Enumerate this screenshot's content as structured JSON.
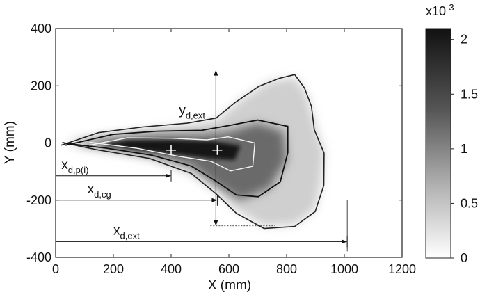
{
  "chart_data": {
    "type": "heatmap",
    "title": "",
    "xlabel": "X (mm)",
    "ylabel": "Y (mm)",
    "xlim": [
      0,
      1200
    ],
    "ylim": [
      -400,
      400
    ],
    "x_ticks": [
      "0",
      "200",
      "400",
      "600",
      "800",
      "1000",
      "1200"
    ],
    "y_ticks": [
      "400",
      "200",
      "0",
      "-200",
      "-400"
    ],
    "x_tick_values": [
      0,
      200,
      400,
      600,
      800,
      1000,
      1200
    ],
    "y_tick_values": [
      400,
      200,
      0,
      -200,
      -400
    ],
    "colorbar": {
      "exponent_label": "x10",
      "exponent": "-3",
      "range": [
        0,
        2.1
      ],
      "ticks": [
        "2",
        "1.5",
        "1",
        "0.5",
        "0"
      ],
      "tick_values": [
        2,
        1.5,
        1,
        0.5,
        0
      ],
      "colormap": "gray-reversed"
    },
    "annotations": {
      "y_ext": {
        "base": "y",
        "sub": "d,ext",
        "x": 555,
        "y_from": 255,
        "y_to": -290
      },
      "x_pi": {
        "base": "x",
        "sub": "d,p(i)",
        "x_from": 0,
        "x_to": 400,
        "y": -115
      },
      "x_cg": {
        "base": "x",
        "sub": "d,cg",
        "x_from": 0,
        "x_to": 560,
        "y": -200
      },
      "x_ext": {
        "base": "x",
        "sub": "d,ext",
        "x_from": 0,
        "x_to": 1010,
        "y": -345
      }
    },
    "markers": [
      {
        "x": 400,
        "y": -25
      },
      {
        "x": 560,
        "y": -25
      }
    ],
    "contour_levels": [
      "outer",
      "mid",
      "inner"
    ]
  }
}
